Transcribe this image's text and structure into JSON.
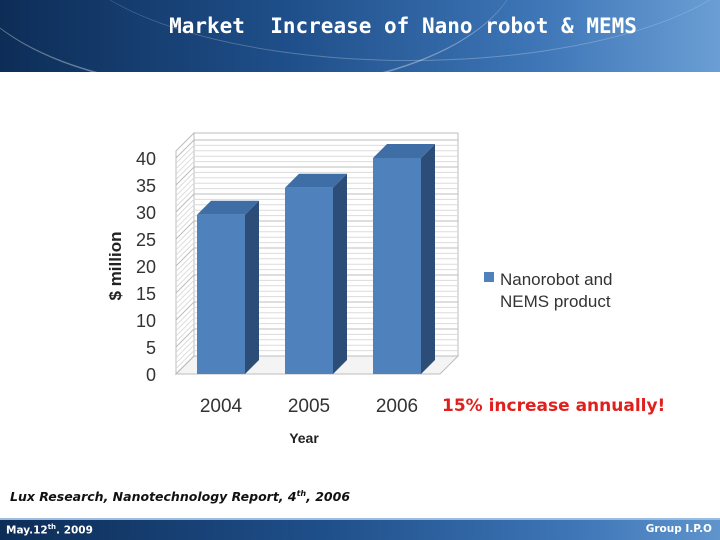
{
  "slide": {
    "title": "Market  Increase of Nano robot & MEMS",
    "note": "15% increase annually!",
    "source_prefix": "Lux Research, Nanotechnology Report, 4",
    "source_sup": "th",
    "source_suffix": ", 2006",
    "footer_date_prefix": "May.12",
    "footer_date_sup": "th",
    "footer_date_suffix": ". 2009",
    "footer_group": "Group I.P.O"
  },
  "colors": {
    "header": "#1f4f8a",
    "bar_front": "#4f81bd",
    "bar_top": "#3f6da6",
    "bar_side": "#2c4d77",
    "note": "#e0201c"
  },
  "chart_data": {
    "type": "bar",
    "categories": [
      "2004",
      "2005",
      "2006"
    ],
    "series": [
      {
        "name": "Nanorobot and NEMS product",
        "values": [
          29.5,
          34.5,
          40
        ]
      }
    ],
    "xlabel": "Year",
    "ylabel": "$ million",
    "ylim": [
      0,
      40
    ],
    "yticks": [
      "0",
      "5",
      "10",
      "15",
      "20",
      "25",
      "30",
      "35",
      "40"
    ],
    "grid": true,
    "legend": "right",
    "style": "3d"
  }
}
